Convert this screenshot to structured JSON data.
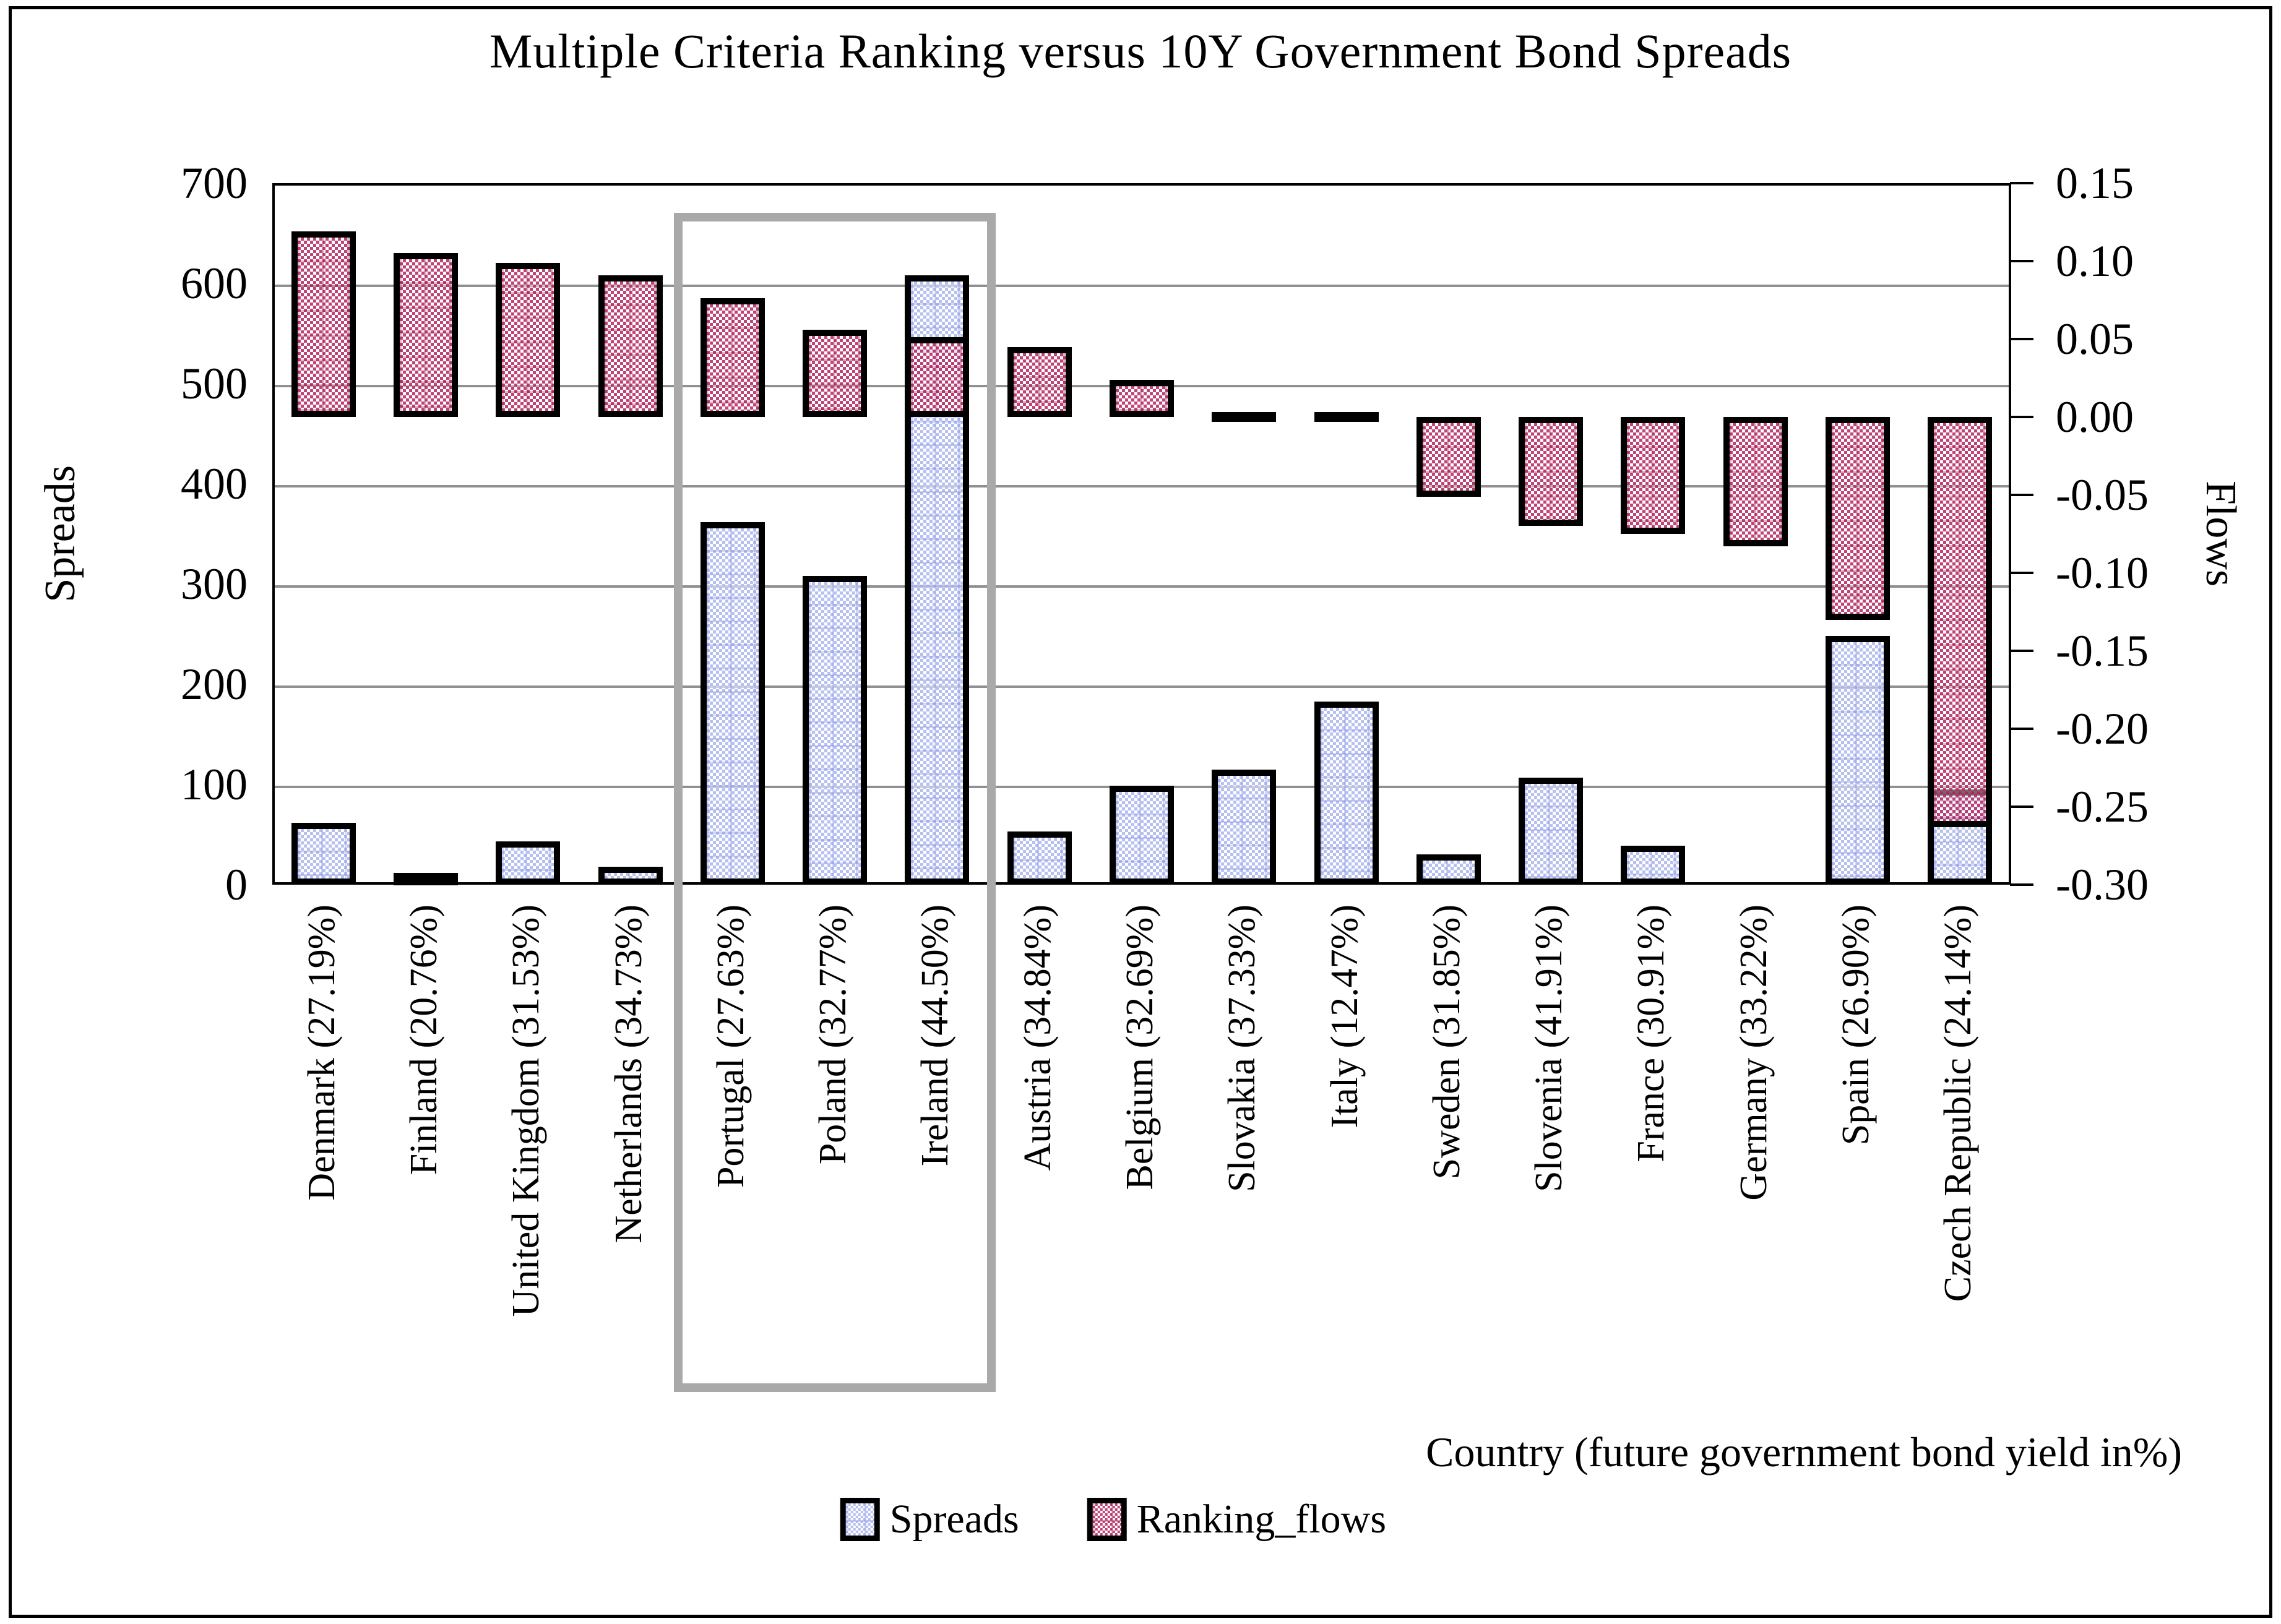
{
  "title": "Multiple Criteria Ranking versus 10Y Government Bond Spreads",
  "left_axis": {
    "label": "Spreads",
    "tick_labels": [
      "700",
      "600",
      "500",
      "400",
      "300",
      "200",
      "100",
      "0"
    ],
    "min": 0,
    "max": 700
  },
  "right_axis": {
    "label": "Flows",
    "tick_labels": [
      "0.15",
      "0.10",
      "0.05",
      "0.00",
      "-0.05",
      "-0.10",
      "-0.15",
      "-0.20",
      "-0.25",
      "-0.30"
    ],
    "min": -0.3,
    "max": 0.15
  },
  "x_axis": {
    "title": "Country (future government bond yield in%)"
  },
  "legend": [
    {
      "label": "Spreads",
      "swatch": "spreads-swatch"
    },
    {
      "label": "Ranking_flows",
      "swatch": "ranking-flows-swatch"
    }
  ],
  "highlight_box": {
    "from_category": "Portugal (27.63%)",
    "to_category": "Ireland (44.50%)",
    "color": "#a9a9a9"
  },
  "colors": {
    "spreads_fill": "#b7c0ee",
    "ranking_flows_fill": "#c65a82",
    "overlap_blend": "#9a5f9e",
    "gridline": "#909090",
    "bar_border": "#000000"
  },
  "chart_data": {
    "type": "bar",
    "title": "Multiple Criteria Ranking versus 10Y Government Bond Spreads",
    "xlabel": "Country (future government bond yield in%)",
    "categories": [
      "Denmark (27.19%)",
      "Finland (20.76%)",
      "United Kingdom (31.53%)",
      "Netherlands (34.73%)",
      "Portugal (27.63%)",
      "Poland (32.77%)",
      "Ireland (44.50%)",
      "Austria (34.84%)",
      "Belgium (32.69%)",
      "Slovakia (37.33%)",
      "Italy (12.47%)",
      "Sweden (31.85%)",
      "Slovenia (41.91%)",
      "France (30.91%)",
      "Germany (33.22%)",
      "Spain (26.90%)",
      "Czech Republic (24.14%)"
    ],
    "series": [
      {
        "name": "Spreads",
        "axis": "left",
        "ylabel": "Spreads",
        "ylim": [
          0,
          700
        ],
        "values": [
          62,
          12,
          43,
          18,
          362,
          308,
          608,
          53,
          99,
          115,
          183,
          30,
          107,
          39,
          0,
          248,
          95
        ]
      },
      {
        "name": "Ranking_flows",
        "axis": "right",
        "ylabel": "Flows",
        "ylim": [
          -0.3,
          0.15
        ],
        "values": [
          0.119,
          0.105,
          0.099,
          0.091,
          0.076,
          0.056,
          0.051,
          0.045,
          0.024,
          0.0,
          0.0,
          -0.051,
          -0.07,
          -0.075,
          -0.083,
          -0.13,
          -0.263
        ]
      }
    ],
    "grid": "horizontal-major-left-axis",
    "legend_position": "bottom-center",
    "annotations": [
      "gray box highlighting Portugal, Poland and Ireland columns"
    ]
  }
}
